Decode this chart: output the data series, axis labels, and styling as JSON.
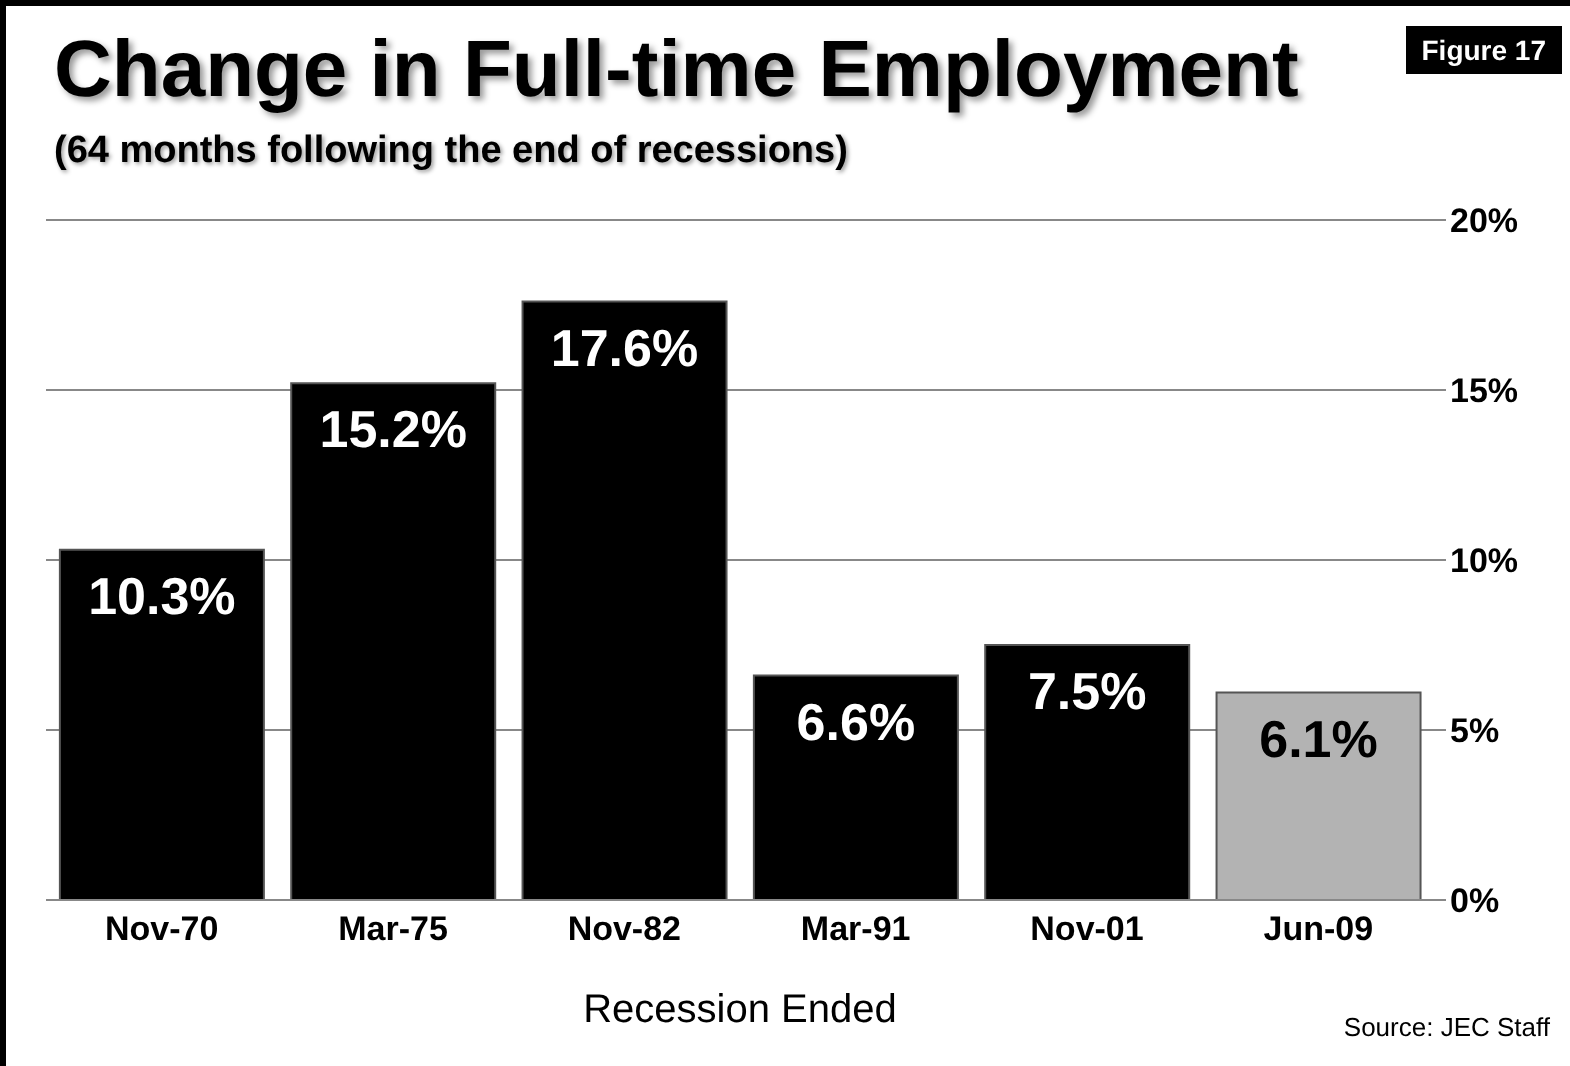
{
  "chart_data": {
    "type": "bar",
    "title": "Change in Full-time Employment",
    "subtitle": "(64 months following the end of recessions)",
    "xlabel": "Recession Ended",
    "categories": [
      "Nov-70",
      "Mar-75",
      "Nov-82",
      "Mar-91",
      "Nov-01",
      "Jun-09"
    ],
    "values": [
      10.3,
      15.2,
      17.6,
      6.6,
      7.5,
      6.1
    ],
    "colors": [
      "#000000",
      "#000000",
      "#000000",
      "#000000",
      "#000000",
      "#b3b3b3"
    ],
    "value_labels": [
      "10.3%",
      "15.2%",
      "17.6%",
      "6.6%",
      "7.5%",
      "6.1%"
    ],
    "ylim": [
      0,
      20
    ],
    "yticks": [
      {
        "value": 0,
        "label": "0%"
      },
      {
        "value": 5,
        "label": "5%"
      },
      {
        "value": 10,
        "label": "10%"
      },
      {
        "value": 15,
        "label": "15%"
      },
      {
        "value": 20,
        "label": "20%"
      }
    ],
    "grid": "y",
    "annotations": [
      "Figure 17",
      "Source: JEC Staff"
    ]
  }
}
